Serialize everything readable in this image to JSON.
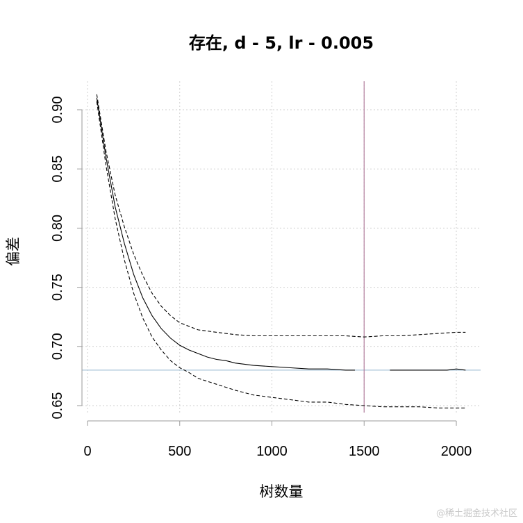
{
  "chart_data": {
    "type": "line",
    "title": "存在, d - 5, lr - 0.005",
    "xlabel": "树数量",
    "ylabel": "偏差",
    "xlim": [
      0,
      2100
    ],
    "ylim": [
      0.635,
      0.925
    ],
    "x_ticks": [
      0,
      500,
      1000,
      1500,
      2000
    ],
    "x_tick_labels": [
      "0",
      "500",
      "1000",
      "1500",
      "2000"
    ],
    "y_ticks": [
      0.65,
      0.7,
      0.75,
      0.8,
      0.85,
      0.9
    ],
    "y_tick_labels": [
      "0.65",
      "0.70",
      "0.75",
      "0.80",
      "0.85",
      "0.90"
    ],
    "grid": true,
    "reference_lines": {
      "vertical_x": 1500,
      "vertical_color": "#b07a9a",
      "horizontal_y": 0.68,
      "horizontal_color": "#a9c4d8"
    },
    "series": [
      {
        "style": "solid",
        "x": [
          50,
          100,
          150,
          200,
          250,
          300,
          350,
          400,
          450,
          500,
          550,
          600,
          650,
          700,
          750,
          800,
          900,
          1000,
          1100,
          1200,
          1300,
          1400,
          1450
        ],
        "y": [
          0.91,
          0.86,
          0.818,
          0.787,
          0.761,
          0.741,
          0.726,
          0.715,
          0.707,
          0.701,
          0.697,
          0.694,
          0.691,
          0.689,
          0.688,
          0.686,
          0.684,
          0.683,
          0.682,
          0.681,
          0.681,
          0.68,
          0.68
        ]
      },
      {
        "style": "solid",
        "x": [
          1640,
          1700,
          1800,
          1900,
          1950,
          2000,
          2050
        ],
        "y": [
          0.68,
          0.68,
          0.68,
          0.68,
          0.68,
          0.681,
          0.68
        ]
      },
      {
        "style": "dashed",
        "x": [
          50,
          100,
          150,
          200,
          250,
          300,
          350,
          400,
          450,
          500,
          550,
          600,
          700,
          800,
          900,
          1000,
          1100,
          1200,
          1300,
          1400,
          1500,
          1600,
          1700,
          1800,
          1900,
          2000,
          2050
        ],
        "y": [
          0.913,
          0.865,
          0.828,
          0.801,
          0.778,
          0.76,
          0.745,
          0.734,
          0.726,
          0.72,
          0.717,
          0.714,
          0.712,
          0.71,
          0.709,
          0.709,
          0.709,
          0.709,
          0.709,
          0.709,
          0.708,
          0.709,
          0.709,
          0.71,
          0.711,
          0.712,
          0.712
        ]
      },
      {
        "style": "dashed",
        "x": [
          50,
          100,
          150,
          200,
          250,
          300,
          350,
          400,
          450,
          500,
          550,
          600,
          700,
          800,
          900,
          1000,
          1100,
          1200,
          1300,
          1400,
          1500,
          1600,
          1700,
          1800,
          1900,
          2000,
          2050
        ],
        "y": [
          0.907,
          0.853,
          0.808,
          0.773,
          0.745,
          0.724,
          0.708,
          0.697,
          0.688,
          0.682,
          0.678,
          0.673,
          0.668,
          0.663,
          0.659,
          0.657,
          0.655,
          0.653,
          0.653,
          0.651,
          0.65,
          0.649,
          0.649,
          0.649,
          0.648,
          0.648,
          0.648
        ]
      }
    ]
  },
  "watermark": "@稀土掘金技术社区"
}
